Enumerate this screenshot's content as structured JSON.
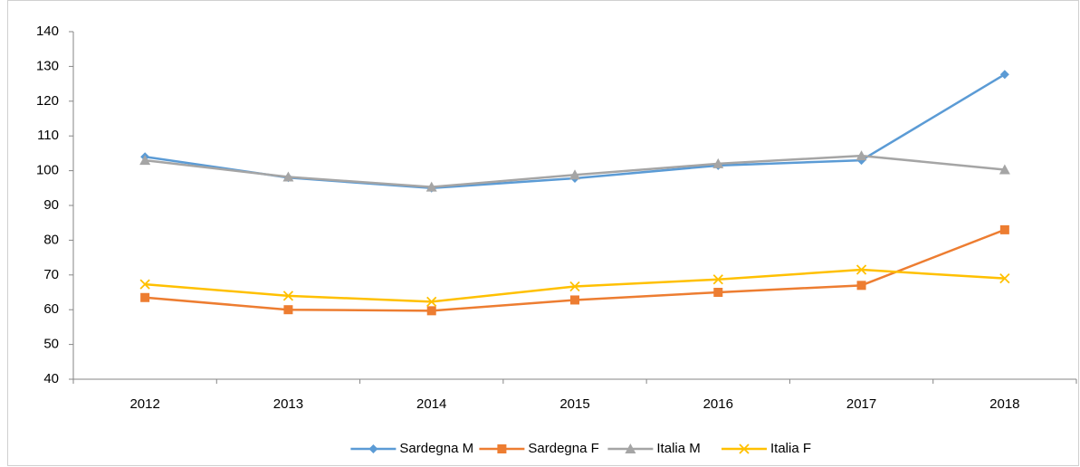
{
  "chart_data": {
    "type": "line",
    "categories": [
      "2012",
      "2013",
      "2014",
      "2015",
      "2016",
      "2017",
      "2018"
    ],
    "series": [
      {
        "name": "Sardegna M",
        "color": "#5b9bd5",
        "marker": "diamond",
        "values": [
          104,
          98,
          95,
          97.8,
          101.5,
          103,
          127.7
        ]
      },
      {
        "name": "Sardegna F",
        "color": "#ed7d31",
        "marker": "square",
        "values": [
          63.5,
          60,
          59.7,
          62.8,
          65,
          67,
          83
        ]
      },
      {
        "name": "Italia M",
        "color": "#a5a5a5",
        "marker": "triangle",
        "values": [
          103,
          98.2,
          95.3,
          98.8,
          102,
          104.3,
          100.3
        ]
      },
      {
        "name": "Italia F",
        "color": "#ffc000",
        "marker": "x",
        "values": [
          67.3,
          64,
          62.3,
          66.7,
          68.7,
          71.5,
          69
        ]
      }
    ],
    "ylim": [
      40,
      140
    ],
    "yticks": [
      40,
      50,
      60,
      70,
      80,
      90,
      100,
      110,
      120,
      130,
      140
    ],
    "grid": false,
    "legend": "bottom"
  }
}
